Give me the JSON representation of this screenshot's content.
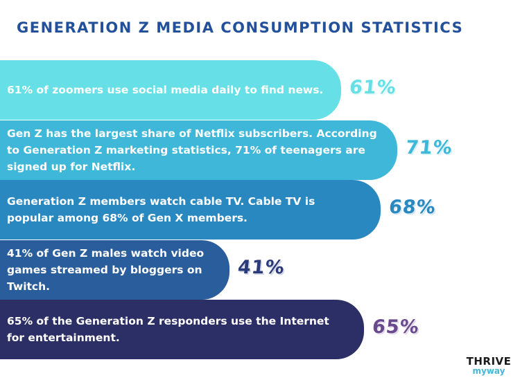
{
  "title": "GENERATION Z MEDIA CONSUMPTION STATISTICS",
  "chart_data": {
    "type": "bar",
    "title": "GENERATION Z MEDIA CONSUMPTION STATISTICS",
    "categories": [
      "61% of zoomers use social media daily to find news.",
      "Gen Z has the largest share of Netflix subscribers. According to Generation Z marketing statistics, 71% of teenagers are signed up for Netflix.",
      "Generation Z members watch cable TV. Cable TV is popular among 68% of Gen X members.",
      "41% of Gen Z males watch video games streamed by bloggers on Twitch.",
      "65% of the Generation Z responders use the Internet for entertainment."
    ],
    "values": [
      61,
      71,
      68,
      41,
      65
    ],
    "value_labels": [
      "61%",
      "71%",
      "68%",
      "41%",
      "65%"
    ],
    "bar_colors": [
      "#66e0e6",
      "#3eb7d9",
      "#2a88c0",
      "#2a5d9b",
      "#2c2f66"
    ],
    "label_colors": [
      "#66e0e6",
      "#3eb7d9",
      "#2a88c0",
      "#2a3a7a",
      "#6a4a8e"
    ]
  },
  "logo": {
    "top": "THRIVE",
    "bottom": "myway"
  }
}
